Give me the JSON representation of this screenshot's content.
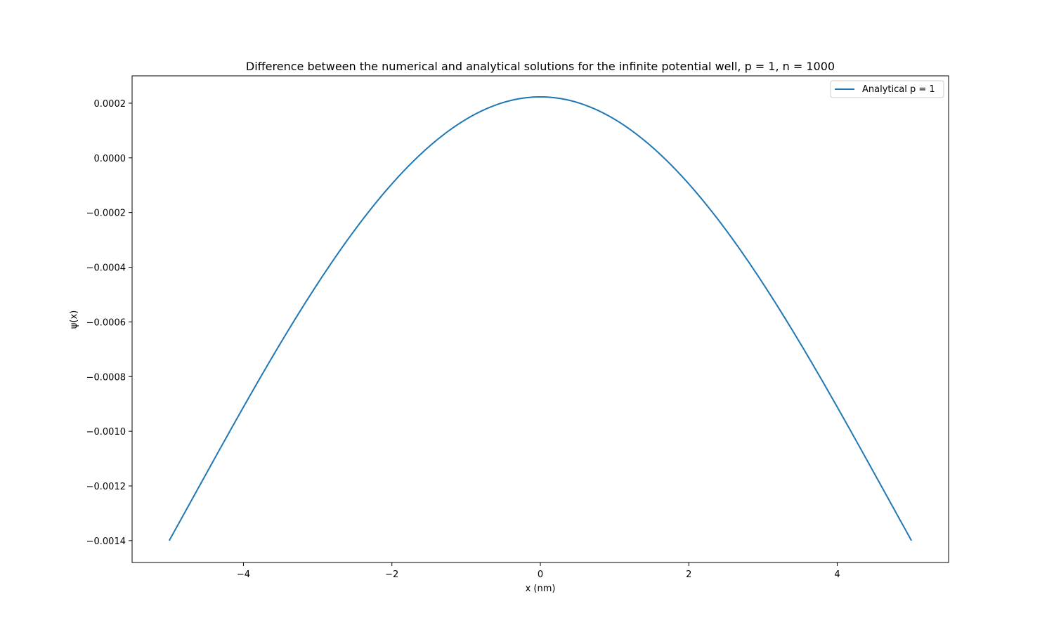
{
  "chart_data": {
    "type": "line",
    "title": "Difference between the numerical and analytical solutions for the infinite potential well, p = 1, n = 1000",
    "xlabel": "x (nm)",
    "ylabel": "ψ(x)",
    "xlim": [
      -5.5,
      5.5
    ],
    "ylim": [
      -0.00148,
      0.0003
    ],
    "x_ticks": [
      -4,
      -2,
      0,
      2,
      4
    ],
    "x_tick_labels": [
      "−4",
      "−2",
      "0",
      "2",
      "4"
    ],
    "y_ticks": [
      0.0002,
      0.0,
      -0.0002,
      -0.0004,
      -0.0006,
      -0.0008,
      -0.001,
      -0.0012,
      -0.0014
    ],
    "y_tick_labels": [
      "0.0002",
      "0.0000",
      "−0.0002",
      "−0.0004",
      "−0.0006",
      "−0.0008",
      "−0.0010",
      "−0.0012",
      "−0.0014"
    ],
    "grid": false,
    "legend": {
      "position": "upper-right",
      "entries": [
        "Analytical p = 1"
      ]
    },
    "series": [
      {
        "name": "Analytical p = 1",
        "color": "#1f77b4",
        "x": [
          -5,
          -4.5,
          -4,
          -3.5,
          -3,
          -2.5,
          -2,
          -1.5,
          -1,
          -0.5,
          0,
          0.5,
          1,
          1.5,
          2,
          2.5,
          3,
          3.5,
          4,
          4.5,
          5
        ],
        "y": [
          -0.0014,
          -0.001191,
          -0.000984,
          -0.000781,
          -0.000586,
          -0.000402,
          -0.000237,
          -8.9e-05,
          5.1e-05,
          0.000166,
          0.000223,
          0.000166,
          5.1e-05,
          -8.9e-05,
          -0.000237,
          -0.000402,
          -0.000586,
          -0.000781,
          -0.000984,
          -0.001191,
          -0.0014
        ]
      }
    ]
  }
}
